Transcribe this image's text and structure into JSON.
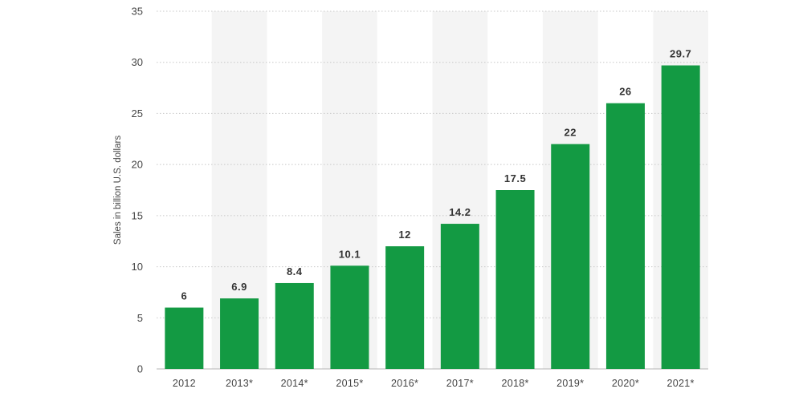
{
  "chart_data": {
    "type": "bar",
    "title": "",
    "xlabel": "",
    "ylabel": "Sales in billion U.S. dollars",
    "categories": [
      "2012",
      "2013*",
      "2014*",
      "2015*",
      "2016*",
      "2017*",
      "2018*",
      "2019*",
      "2020*",
      "2021*"
    ],
    "values": [
      6,
      6.9,
      8.4,
      10.1,
      12,
      14.2,
      17.5,
      22,
      26,
      29.7
    ],
    "value_labels": [
      "6",
      "6.9",
      "8.4",
      "10.1",
      "12",
      "14.2",
      "17.5",
      "22",
      "26",
      "29.7"
    ],
    "ylim": [
      0,
      35
    ],
    "yticks": [
      0,
      5,
      10,
      15,
      20,
      25,
      30,
      35
    ],
    "grid": true,
    "legend": "none",
    "colors": {
      "bar": "#139a43",
      "band": "#f4f4f4",
      "grid": "#c8c8c8"
    }
  }
}
